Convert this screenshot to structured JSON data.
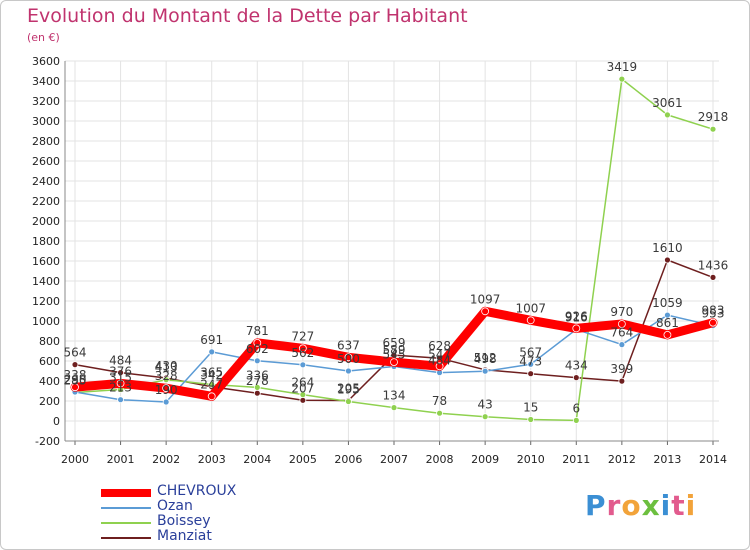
{
  "header": {
    "title": "Evolution du Montant de la Dette par Habitant",
    "subtitle": "(en €)"
  },
  "logo": {
    "text": "Proxiti",
    "colors": [
      "#3b8fd4",
      "#e25b8e",
      "#f2a33a",
      "#6cbf3f",
      "#3b8fd4",
      "#e25b8e",
      "#f2a33a"
    ]
  },
  "chart_data": {
    "type": "line",
    "title": "Evolution du Montant de la Dette par Habitant",
    "ylabel": "(en €)",
    "x": [
      "2000",
      "2001",
      "2002",
      "2003",
      "2004",
      "2005",
      "2006",
      "2007",
      "2008",
      "2009",
      "2010",
      "2011",
      "2012",
      "2013",
      "2014"
    ],
    "ylim": [
      -200,
      3600
    ],
    "yticks": [
      -200,
      0,
      200,
      400,
      600,
      800,
      1000,
      1200,
      1400,
      1600,
      1800,
      2000,
      2200,
      2400,
      2600,
      2800,
      3000,
      3200,
      3400,
      3600
    ],
    "grid": true,
    "legend": "bottom-left",
    "series": [
      {
        "name": "CHEVROUX",
        "color": "#ff0000",
        "values": [
          338,
          376,
          328,
          247,
          781,
          727,
          637,
          589,
          547,
          1097,
          1007,
          926,
          970,
          861,
          983
        ]
      },
      {
        "name": "Ozan",
        "color": "#5b9bd5",
        "values": [
          290,
          213,
          190,
          691,
          602,
          562,
          500,
          545,
          484,
          498,
          567,
          916,
          764,
          1059,
          953
        ]
      },
      {
        "name": "Boissey",
        "color": "#8fd14f",
        "values": [
          285,
          315,
          413,
          365,
          336,
          264,
          195,
          134,
          78,
          43,
          15,
          6,
          3419,
          3061,
          2918
        ]
      },
      {
        "name": "Manziat",
        "color": "#6e1f1f",
        "values": [
          564,
          484,
          430,
          342,
          278,
          207,
          205,
          659,
          628,
          512,
          473,
          434,
          399,
          1610,
          1436
        ]
      }
    ]
  }
}
